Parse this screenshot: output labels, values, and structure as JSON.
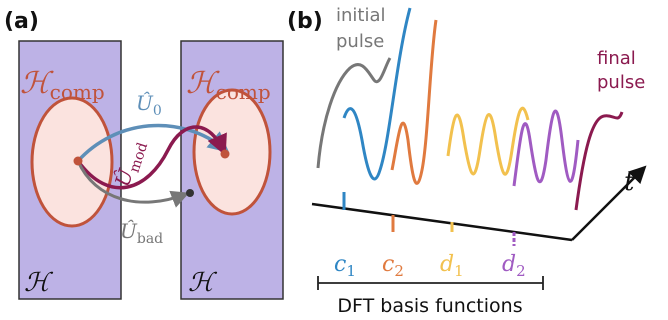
{
  "panel_a": {
    "label": "(a)",
    "space_label": "ℋ",
    "comp_label": "ℋ",
    "comp_subscript": "comp",
    "op_u0": "Û",
    "op_u0_sub": "0",
    "op_mod": "Û",
    "op_mod_sub": "mod",
    "op_bad": "Û",
    "op_bad_sub": "bad"
  },
  "panel_b": {
    "label": "(b)",
    "initial_line1": "initial",
    "initial_line2": "pulse",
    "final_line1": "final",
    "final_line2": "pulse",
    "time_axis": "t",
    "basis": [
      {
        "name": "c",
        "sub": "1",
        "color": "#2f86c4"
      },
      {
        "name": "c",
        "sub": "2",
        "color": "#e07a3f"
      },
      {
        "name": "d",
        "sub": "1",
        "color": "#f2c14e"
      },
      {
        "name": "d",
        "sub": "2",
        "color": "#a05bc2"
      }
    ],
    "bracket_label": "DFT basis functions"
  },
  "colors": {
    "hilbert_fill": "#bdb2e6",
    "hilbert_stroke": "#333333",
    "ellipse_fill": "#fbe3df",
    "ellipse_stroke": "#c0533b",
    "comp_text": "#c0533b",
    "u0": "#5e8fb8",
    "mod": "#8b1a4f",
    "bad": "#777777",
    "initial": "#777777",
    "final": "#8b1a4f"
  }
}
